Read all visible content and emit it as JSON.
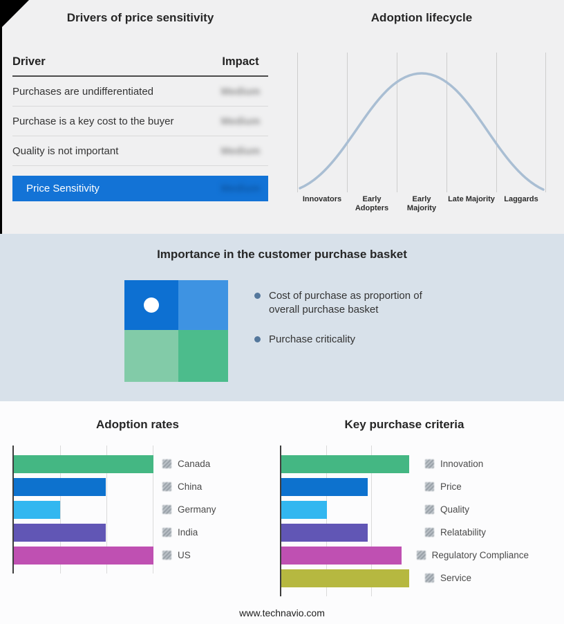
{
  "drivers": {
    "title": "Drivers of price sensitivity",
    "table": {
      "headers": [
        "Driver",
        "Impact"
      ],
      "rows": [
        {
          "driver": "Purchases are undifferentiated",
          "impact": "Medium"
        },
        {
          "driver": "Purchase is a key cost to the buyer",
          "impact": "Medium"
        },
        {
          "driver": "Quality is not important",
          "impact": "Medium"
        }
      ],
      "highlight_row": {
        "driver": "Price Sensitivity",
        "impact": "Medium"
      },
      "highlight_color": "#1373d6"
    }
  },
  "lifecycle": {
    "title": "Adoption lifecycle",
    "stages": [
      "Innovators",
      "Early Adopters",
      "Early Majority",
      "Late Majority",
      "Laggards"
    ],
    "curve_color": "#a9bed3"
  },
  "basket": {
    "title": "Importance in the customer purchase basket",
    "bullets": [
      "Cost of purchase as proportion of overall purchase basket",
      "Purchase criticality"
    ],
    "quadrant_colors": [
      "#0d70d2",
      "#3e93e2",
      "#82cba8",
      "#4cbc8c"
    ]
  },
  "footer": {
    "url": "www.technavio.com"
  },
  "chart_data": [
    {
      "type": "line",
      "title": "Adoption lifecycle",
      "x": [
        "Innovators",
        "Early Adopters",
        "Early Majority",
        "Late Majority",
        "Laggards"
      ],
      "description": "Bell-shaped adoption curve rising from Innovators, peaking at Early Majority, falling to Laggards",
      "grid": true,
      "legend": false
    },
    {
      "type": "bar",
      "title": "Adoption rates",
      "orientation": "horizontal",
      "categories": [
        "Canada",
        "China",
        "Germany",
        "India",
        "US"
      ],
      "values": [
        100,
        66,
        33,
        66,
        100
      ],
      "unit": "% of axis length (no numeric scale labeled)",
      "colors": [
        "#44b783",
        "#0d72ce",
        "#32b7f0",
        "#6156b5",
        "#bf50b2"
      ],
      "grid": true,
      "legend_position": "right"
    },
    {
      "type": "bar",
      "title": "Key purchase criteria",
      "orientation": "horizontal",
      "categories": [
        "Innovation",
        "Price",
        "Quality",
        "Relatability",
        "Regulatory Compliance",
        "Service"
      ],
      "values": [
        95,
        64,
        34,
        64,
        95,
        95
      ],
      "unit": "% of axis length (no numeric scale labeled)",
      "colors": [
        "#44b783",
        "#0d72ce",
        "#32b7f0",
        "#6156b5",
        "#bf50b2",
        "#b6b840"
      ],
      "grid": true,
      "legend_position": "right"
    }
  ]
}
